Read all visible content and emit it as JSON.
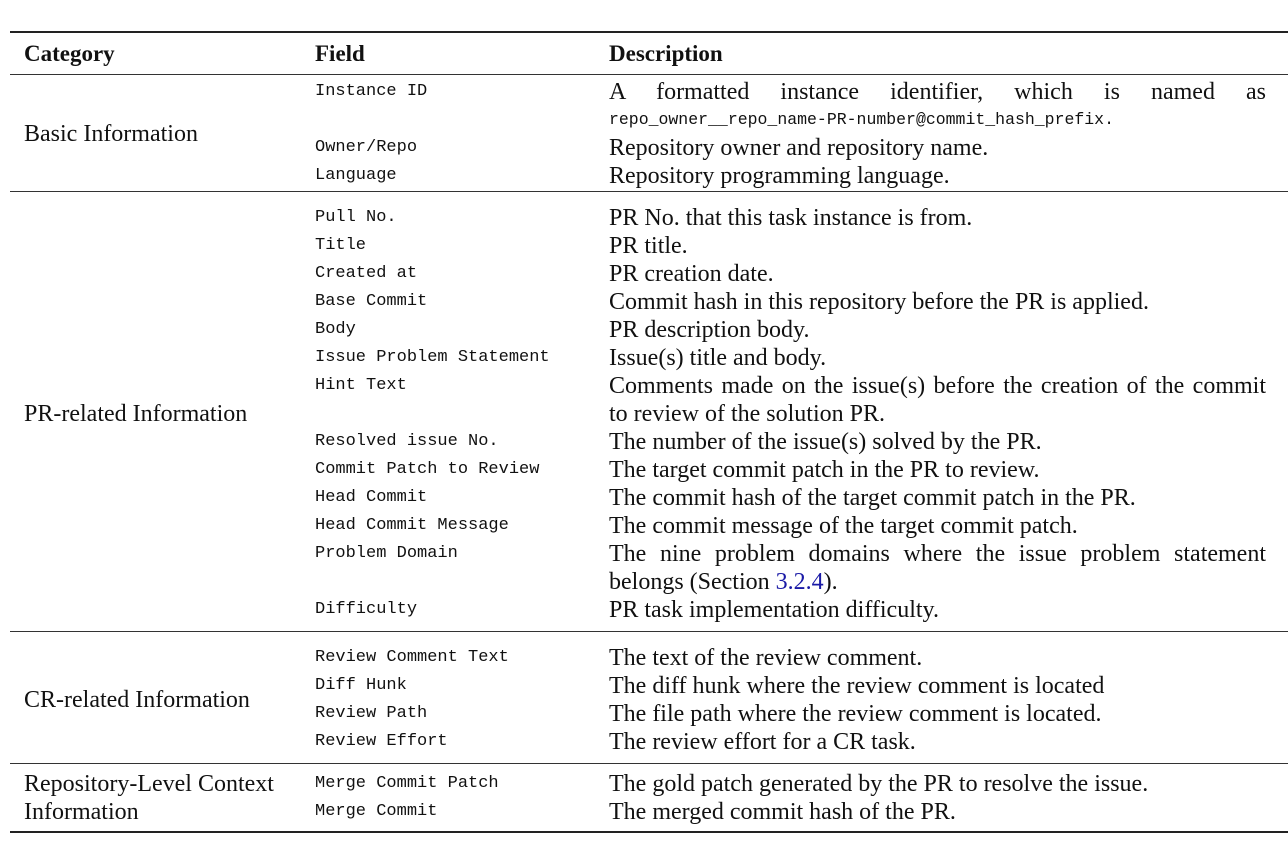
{
  "headers": {
    "category": "Category",
    "field": "Field",
    "description": "Description"
  },
  "groups": [
    {
      "category": "Basic Information",
      "rows": [
        {
          "field": "Instance ID",
          "description": "A formatted instance identifier, which is named as",
          "description_code": "repo_owner__repo_name-PR-number@commit_hash_prefix."
        },
        {
          "field": "Owner/Repo",
          "description": "Repository owner and repository name."
        },
        {
          "field": "Language",
          "description": "Repository programming language."
        }
      ]
    },
    {
      "category": "PR-related Information",
      "rows": [
        {
          "field": "Pull No.",
          "description": "PR No. that this task instance is from."
        },
        {
          "field": "Title",
          "description": "PR title."
        },
        {
          "field": "Created at",
          "description": "PR creation date."
        },
        {
          "field": "Base Commit",
          "description": "Commit hash in this repository before the PR is applied."
        },
        {
          "field": "Body",
          "description": "PR description body."
        },
        {
          "field": "Issue Problem Statement",
          "description": "Issue(s) title and body."
        },
        {
          "field": "Hint Text",
          "description": "Comments made on the issue(s) before the creation of the commit to review of the solution PR."
        },
        {
          "field": "Resolved issue No.",
          "description": "The number of the issue(s) solved by the PR."
        },
        {
          "field": "Commit Patch to Review",
          "description": "The target commit patch in the PR to review."
        },
        {
          "field": "Head Commit",
          "description": "The commit hash of the target commit patch in the PR."
        },
        {
          "field": "Head Commit Message",
          "description": "The commit message of the target commit patch."
        },
        {
          "field": "Problem Domain",
          "description": "The nine problem domains where the issue problem statement belongs (Section ",
          "link": "3.2.4",
          "description_end": ")."
        },
        {
          "field": "Difficulty",
          "description": "PR task implementation difficulty."
        }
      ]
    },
    {
      "category": "CR-related Information",
      "rows": [
        {
          "field": "Review Comment Text",
          "description": "The text of the review comment."
        },
        {
          "field": "Diff Hunk",
          "description": "The diff hunk where the review comment is located"
        },
        {
          "field": "Review Path",
          "description": "The file path where the review comment is located."
        },
        {
          "field": "Review Effort",
          "description": "The review effort for a CR task."
        }
      ]
    },
    {
      "category": "Repository-Level Context Information",
      "rows": [
        {
          "field": "Merge Commit Patch",
          "description": "The gold patch generated by the PR to resolve the issue."
        },
        {
          "field": "Merge Commit",
          "description": "The merged commit hash of the PR."
        }
      ]
    }
  ],
  "colors": {
    "link": "#1a1aa6",
    "text": "#111111"
  }
}
